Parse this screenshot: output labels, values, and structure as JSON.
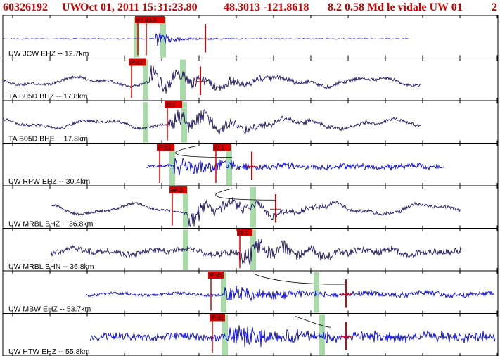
{
  "header": {
    "event_id": "60326192",
    "network": "UW",
    "datetime": "Oct 01, 2011 15:31:23.80",
    "location": "48.3013 -121.8618",
    "magnitude_info": "8.2 0.58 Md le vidale UW 01",
    "page": "2"
  },
  "colors": {
    "trace_blue": "#0000dd",
    "trace_navy": "#1a1060",
    "pick_red": "#dd0000",
    "window_green": "#a8dba8",
    "frame": "#000000"
  },
  "traces": [
    {
      "label": "UW JCW EHZ -- 12.7km",
      "color": "blue",
      "picks": [
        {
          "text": "iP:0",
          "dashed": false
        },
        {
          "text": "eS:3",
          "dashed": false
        }
      ]
    },
    {
      "label": "TA B05D BHZ -- 17.8km",
      "color": "navy",
      "picks": [
        {
          "text": "iP:c1",
          "dashed": false
        }
      ]
    },
    {
      "label": "TA B05D BHE -- 17.8km",
      "color": "navy",
      "picks": [
        {
          "text": "iS:1",
          "dashed": false
        }
      ]
    },
    {
      "label": "UW RPW EHZ -- 30.4km",
      "color": "blue",
      "picks": [
        {
          "text": "iP:d1",
          "dashed": false
        },
        {
          "text": "iS:1",
          "dashed": false
        }
      ]
    },
    {
      "label": "UW MRBL BHZ -- 36.8km",
      "color": "navy",
      "picks": [
        {
          "text": "eP:2",
          "dashed": false
        }
      ]
    },
    {
      "label": "UW MRBL BHN -- 36.8km",
      "color": "navy",
      "picks": [
        {
          "text": "iS:1",
          "dashed": false
        }
      ]
    },
    {
      "label": "UW MBW EHZ -- 53.7km",
      "color": "blue",
      "picks": [
        {
          "text": "iP:d1",
          "dashed": false
        }
      ]
    },
    {
      "label": "UW HTW EHZ -- 55.8km",
      "color": "blue",
      "picks": [
        {
          "text": "iP:d1",
          "dashed": false
        }
      ]
    }
  ]
}
